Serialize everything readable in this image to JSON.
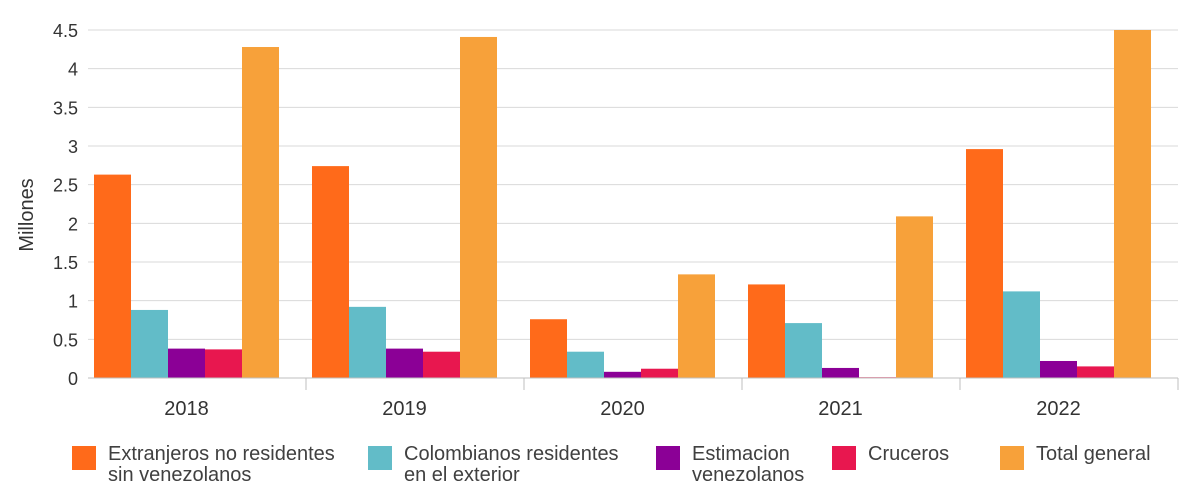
{
  "chart_data": {
    "type": "bar",
    "title": "",
    "xlabel": "",
    "ylabel": "Millones",
    "ylim": [
      0,
      4.5
    ],
    "yticks": [
      "0",
      "0.5",
      "1",
      "1.5",
      "2",
      "2.5",
      "3",
      "3.5",
      "4",
      "4.5"
    ],
    "grid": true,
    "legend_position": "bottom",
    "categories": [
      "2018",
      "2019",
      "2020",
      "2021",
      "2022"
    ],
    "series": [
      {
        "name": "Extranjeros no residentes\nsin venezolanos",
        "color": "#FF6A1A",
        "values": [
          2.63,
          2.74,
          0.76,
          1.21,
          2.96
        ]
      },
      {
        "name": "Colombianos residentes\nen el exterior",
        "color": "#62BCC8",
        "values": [
          0.88,
          0.92,
          0.34,
          0.71,
          1.12
        ]
      },
      {
        "name": "Estimacion\nvenezolanos",
        "color": "#8B0096",
        "values": [
          0.38,
          0.38,
          0.08,
          0.13,
          0.22
        ]
      },
      {
        "name": "Cruceros",
        "color": "#E8174F",
        "values": [
          0.37,
          0.34,
          0.12,
          0.01,
          0.15
        ]
      },
      {
        "name": "Total general",
        "color": "#F7A13A",
        "values": [
          4.28,
          4.41,
          1.34,
          2.09,
          4.5
        ]
      }
    ]
  }
}
